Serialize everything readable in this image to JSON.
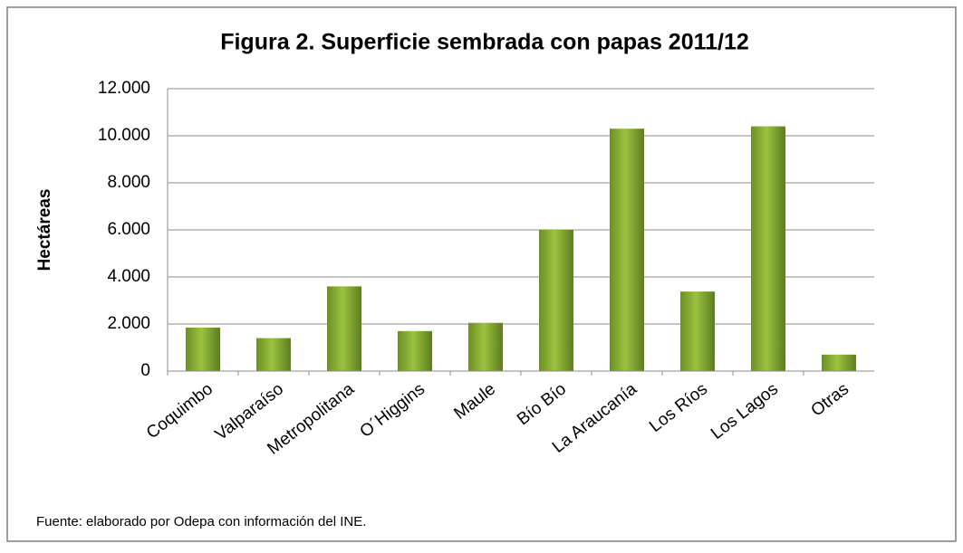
{
  "chart_data": {
    "type": "bar",
    "title": "Figura 2. Superficie sembrada con papas 2011/12",
    "y_label": "Hectáreas",
    "note": "Fuente: elaborado por Odepa con información del INE.",
    "categories": [
      "Coquimbo",
      "Valparaíso",
      "Metropolitana",
      "O´Higgins",
      "Maule",
      "Bío Bío",
      "La Araucanía",
      "Los Ríos",
      "Los Lagos",
      "Otras"
    ],
    "values": [
      1850,
      1400,
      3600,
      1700,
      2050,
      6000,
      10300,
      3380,
      10400,
      700
    ],
    "color": "#9bc23f",
    "ylim": [
      0,
      12000
    ],
    "yticks": [
      0,
      {
        "value": 2000,
        "label": "2.000"
      },
      {
        "value": 4000,
        "label": "4.000"
      },
      {
        "value": 6000,
        "label": "6.000"
      },
      {
        "value": 8000,
        "label": "8.000"
      },
      {
        "value": 10000,
        "label": "10.000"
      },
      {
        "value": 12000,
        "label": "12.000"
      }
    ],
    "grid": true
  }
}
